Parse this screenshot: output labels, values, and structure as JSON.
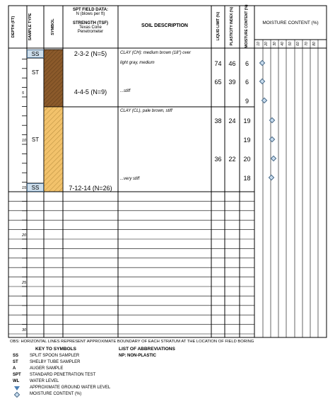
{
  "header": {
    "depth": "DEPTH (FT)",
    "sample_type": "SAMPLE TYPE",
    "symbol": "SYMBOL",
    "spt_title": "SPT FIELD DATA:",
    "spt_sub": "N (blows per ft)",
    "strength_title": "STRENGTH (TSF)",
    "strength_sub1": "Texas Cone",
    "strength_sub2": "Penetrometer",
    "soil_description": "SOIL DESCRIPTION",
    "liquid_limit": "LIQUID LIMIT (%)",
    "plasticity_index": "PLASTICITY INDEX (%)",
    "moisture_content": "MOISTURE CONTENT (%)",
    "moisture_chart": "MOISTURE CONTENT (%)",
    "moisture_ticks": [
      "10",
      "20",
      "30",
      "40",
      "50",
      "60",
      "70",
      "80"
    ]
  },
  "depth_labels": [
    "5",
    "10",
    "15",
    "20",
    "25",
    "30"
  ],
  "samples": [
    {
      "type": "SS",
      "spt": "2-3-2 (N=5)"
    },
    {
      "type": "ST",
      "spt": ""
    },
    {
      "type": "ST",
      "spt": "4-4-5 (N=9)"
    },
    {
      "type": "ST",
      "spt": ""
    },
    {
      "type": "SS",
      "spt": "7-12-14 (N=26)"
    }
  ],
  "descriptions": {
    "layer1_a": "CLAY (CH): medium brown (18\") over",
    "layer1_b": "light gray, medium",
    "layer1_c": "...stiff",
    "layer2_a": "CLAY (CL), pale brown, stiff",
    "layer2_b": "...very stiff"
  },
  "lab": [
    {
      "ll": "74",
      "pi": "46",
      "mc": "6"
    },
    {
      "ll": "65",
      "pi": "39",
      "mc": "6"
    },
    {
      "ll": "",
      "pi": "",
      "mc": "9"
    },
    {
      "ll": "38",
      "pi": "24",
      "mc": "19"
    },
    {
      "ll": "",
      "pi": "",
      "mc": "19"
    },
    {
      "ll": "36",
      "pi": "22",
      "mc": "20"
    },
    {
      "ll": "",
      "pi": "",
      "mc": "18"
    }
  ],
  "footer": {
    "obs": "OBS: HORIZONTAL LINES REPRESENT APPROXIMATE BOUNDARY OF EACH STRATUM AT THE LOCATION OF FIELD BORING",
    "key_title": "KEY TO SYMBOLS",
    "abbr_title": "LIST OF ABBREVIATIONS",
    "abbr_np": "NP: NON-PLASTIC",
    "keys": [
      {
        "code": "SS",
        "text": "SPLIT SPOON SAMPLER"
      },
      {
        "code": "ST",
        "text": "SHELBY TUBE SAMPLER"
      },
      {
        "code": "A",
        "text": "AUGER SAMPLE"
      },
      {
        "code": "SPT",
        "text": "STANDARD PENETRATION TEST"
      },
      {
        "code": "WL",
        "text": "WATER LEVEL"
      },
      {
        "code": "",
        "text": "APPROXIMATE GROUND WATER LEVEL"
      },
      {
        "code": "",
        "text": "MOISTURE CONTENT (%)"
      }
    ]
  },
  "colors": {
    "layer1": "#8b5a2b",
    "layer2": "#f2c26b",
    "ss_fill": "#cfe0ee"
  }
}
